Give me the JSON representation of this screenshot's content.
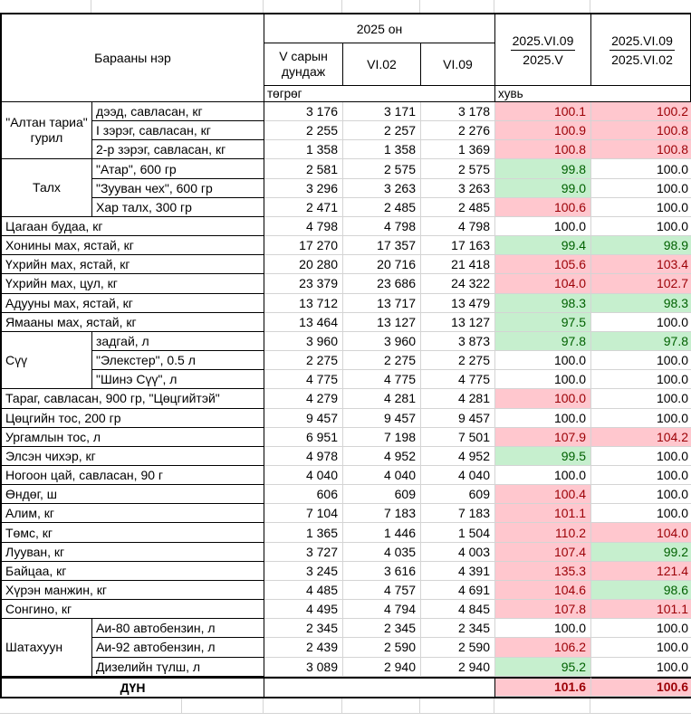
{
  "header": {
    "product_col": "Барааны нэр",
    "year_group": "2025 он",
    "sub_cols": [
      "V сарын дундаж",
      "VI.02",
      "VI.09"
    ],
    "ratio1": {
      "numerator": "2025.VI.09",
      "denominator": "2025.V"
    },
    "ratio2": {
      "numerator": "2025.VI.09",
      "denominator": "2025.VI.02"
    },
    "unit_prices": "төгрөг",
    "unit_pct": "хувь"
  },
  "colors": {
    "increase_bg": "#ffc7ce",
    "increase_text": "#9c0006",
    "decrease_bg": "#c6efce",
    "decrease_text": "#006100",
    "gridline": "#d4d4d4",
    "border": "#000000"
  },
  "rows": [
    {
      "group": "\"Алтан тариа\" гурил",
      "group_rows": 3,
      "group_align": "center",
      "name": "дээд, савласан, кг",
      "values": [
        "3 176",
        "3 171",
        "3 178"
      ],
      "pct": [
        "100.1",
        "100.2"
      ],
      "pct_state": [
        "up",
        "up"
      ]
    },
    {
      "name": "I зэрэг, савласан, кг",
      "values": [
        "2 255",
        "2 257",
        "2 276"
      ],
      "pct": [
        "100.9",
        "100.8"
      ],
      "pct_state": [
        "up",
        "up"
      ]
    },
    {
      "name": "2-р зэрэг, савласан, кг",
      "values": [
        "1 358",
        "1 358",
        "1 369"
      ],
      "pct": [
        "100.8",
        "100.8"
      ],
      "pct_state": [
        "up",
        "up"
      ]
    },
    {
      "group": "Талх",
      "group_rows": 3,
      "group_align": "center",
      "name": "\"Атар\", 600 гр",
      "values": [
        "2 581",
        "2 575",
        "2 575"
      ],
      "pct": [
        "99.8",
        "100.0"
      ],
      "pct_state": [
        "down",
        "flat"
      ]
    },
    {
      "name": "\"Зууван чех\", 600 гр",
      "values": [
        "3 296",
        "3 263",
        "3 263"
      ],
      "pct": [
        "99.0",
        "100.0"
      ],
      "pct_state": [
        "down",
        "flat"
      ]
    },
    {
      "name": "Хар талх, 300 гр",
      "values": [
        "2 471",
        "2 485",
        "2 485"
      ],
      "pct": [
        "100.6",
        "100.0"
      ],
      "pct_state": [
        "up",
        "flat"
      ]
    },
    {
      "name": "Цагаан будаа, кг",
      "merged": true,
      "values": [
        "4 798",
        "4 798",
        "4 798"
      ],
      "pct": [
        "100.0",
        "100.0"
      ],
      "pct_state": [
        "flat",
        "flat"
      ]
    },
    {
      "name": "Хонины мах, ястай, кг",
      "merged": true,
      "values": [
        "17 270",
        "17 357",
        "17 163"
      ],
      "pct": [
        "99.4",
        "98.9"
      ],
      "pct_state": [
        "down",
        "down"
      ]
    },
    {
      "name": "Үхрийн мах, ястай, кг",
      "merged": true,
      "values": [
        "20 280",
        "20 716",
        "21 418"
      ],
      "pct": [
        "105.6",
        "103.4"
      ],
      "pct_state": [
        "up",
        "up"
      ]
    },
    {
      "name": "Үхрийн мах, цул, кг",
      "merged": true,
      "values": [
        "23 379",
        "23 686",
        "24 322"
      ],
      "pct": [
        "104.0",
        "102.7"
      ],
      "pct_state": [
        "up",
        "up"
      ]
    },
    {
      "name": "Адууны мах, ястай, кг",
      "merged": true,
      "values": [
        "13 712",
        "13 717",
        "13 479"
      ],
      "pct": [
        "98.3",
        "98.3"
      ],
      "pct_state": [
        "down",
        "down"
      ]
    },
    {
      "name": "Ямааны мах, ястай, кг",
      "merged": true,
      "values": [
        "13 464",
        "13 127",
        "13 127"
      ],
      "pct": [
        "97.5",
        "100.0"
      ],
      "pct_state": [
        "down",
        "flat"
      ]
    },
    {
      "group": "Сүү",
      "group_rows": 3,
      "group_align": "left",
      "name": "задгай, л",
      "values": [
        "3 960",
        "3 960",
        "3 873"
      ],
      "pct": [
        "97.8",
        "97.8"
      ],
      "pct_state": [
        "down",
        "down"
      ]
    },
    {
      "name": "\"Элекстер\", 0.5 л",
      "values": [
        "2 275",
        "2 275",
        "2 275"
      ],
      "pct": [
        "100.0",
        "100.0"
      ],
      "pct_state": [
        "flat",
        "flat"
      ]
    },
    {
      "name": "\"Шинэ Сүү\", л",
      "values": [
        "4 775",
        "4 775",
        "4 775"
      ],
      "pct": [
        "100.0",
        "100.0"
      ],
      "pct_state": [
        "flat",
        "flat"
      ]
    },
    {
      "name": "Тараг, савласан, 900 гр, \"Цөцгийтэй\"",
      "merged": true,
      "values": [
        "4 279",
        "4 281",
        "4 281"
      ],
      "pct": [
        "100.0",
        "100.0"
      ],
      "pct_state": [
        "up",
        "flat"
      ]
    },
    {
      "name": "Цөцгийн тос, 200 гр",
      "merged": true,
      "values": [
        "9 457",
        "9 457",
        "9 457"
      ],
      "pct": [
        "100.0",
        "100.0"
      ],
      "pct_state": [
        "flat",
        "flat"
      ]
    },
    {
      "name": "Ургамлын тос, л",
      "merged": true,
      "values": [
        "6 951",
        "7 198",
        "7 501"
      ],
      "pct": [
        "107.9",
        "104.2"
      ],
      "pct_state": [
        "up",
        "up"
      ]
    },
    {
      "name": "Элсэн чихэр, кг",
      "merged": true,
      "values": [
        "4 978",
        "4 952",
        "4 952"
      ],
      "pct": [
        "99.5",
        "100.0"
      ],
      "pct_state": [
        "down",
        "flat"
      ]
    },
    {
      "name": "Ногоон цай, савласан, 90 г",
      "merged": true,
      "values": [
        "4 040",
        "4 040",
        "4 040"
      ],
      "pct": [
        "100.0",
        "100.0"
      ],
      "pct_state": [
        "flat",
        "flat"
      ]
    },
    {
      "name": "Өндөг, ш",
      "merged": true,
      "values": [
        "606",
        "609",
        "609"
      ],
      "pct": [
        "100.4",
        "100.0"
      ],
      "pct_state": [
        "up",
        "flat"
      ]
    },
    {
      "name": "Алим, кг",
      "merged": true,
      "values": [
        "7 104",
        "7 183",
        "7 183"
      ],
      "pct": [
        "101.1",
        "100.0"
      ],
      "pct_state": [
        "up",
        "flat"
      ]
    },
    {
      "name": "Төмс, кг",
      "merged": true,
      "values": [
        "1 365",
        "1 446",
        "1 504"
      ],
      "pct": [
        "110.2",
        "104.0"
      ],
      "pct_state": [
        "up",
        "up"
      ]
    },
    {
      "name": "Лууван, кг",
      "merged": true,
      "values": [
        "3 727",
        "4 035",
        "4 003"
      ],
      "pct": [
        "107.4",
        "99.2"
      ],
      "pct_state": [
        "up",
        "down"
      ]
    },
    {
      "name": "Байцаа, кг",
      "merged": true,
      "values": [
        "3 245",
        "3 616",
        "4 391"
      ],
      "pct": [
        "135.3",
        "121.4"
      ],
      "pct_state": [
        "up",
        "up"
      ]
    },
    {
      "name": "Хүрэн манжин, кг",
      "merged": true,
      "values": [
        "4 485",
        "4 757",
        "4 691"
      ],
      "pct": [
        "104.6",
        "98.6"
      ],
      "pct_state": [
        "up",
        "down"
      ]
    },
    {
      "name": "Сонгино, кг",
      "merged": true,
      "values": [
        "4 495",
        "4 794",
        "4 845"
      ],
      "pct": [
        "107.8",
        "101.1"
      ],
      "pct_state": [
        "up",
        "up"
      ]
    },
    {
      "group": "Шатахуун",
      "group_rows": 3,
      "group_align": "left",
      "name": "Аи-80 автобензин, л",
      "values": [
        "2 345",
        "2 345",
        "2 345"
      ],
      "pct": [
        "100.0",
        "100.0"
      ],
      "pct_state": [
        "flat",
        "flat"
      ]
    },
    {
      "name": "Аи-92 автобензин, л",
      "values": [
        "2 439",
        "2 590",
        "2 590"
      ],
      "pct": [
        "106.2",
        "100.0"
      ],
      "pct_state": [
        "up",
        "flat"
      ]
    },
    {
      "name": "Дизелийн түлш, л",
      "values": [
        "3 089",
        "2 940",
        "2 940"
      ],
      "pct": [
        "95.2",
        "100.0"
      ],
      "pct_state": [
        "down",
        "flat"
      ]
    }
  ],
  "total": {
    "label": "ДҮН",
    "pct": [
      "101.6",
      "100.6"
    ],
    "pct_state": [
      "up",
      "up"
    ]
  }
}
